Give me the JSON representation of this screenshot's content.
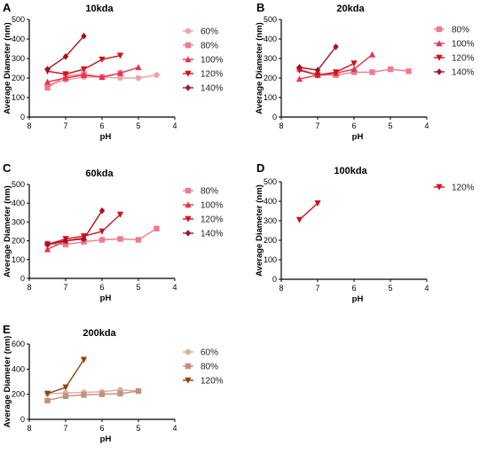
{
  "chart_data": [
    {
      "type": "line",
      "panel_letter": "A",
      "title": "10kda",
      "xlabel": "pH",
      "ylabel": "Average  Diameter  (nm)",
      "xlim": [
        8,
        4
      ],
      "ylim": [
        0,
        500
      ],
      "xticks": [
        "8",
        "7",
        "6",
        "5",
        "4"
      ],
      "yticks": [
        "0",
        "100",
        "200",
        "300",
        "400",
        "500"
      ],
      "legend_position": "right",
      "grid": false,
      "series": [
        {
          "name": "60%",
          "color": "#f3a0a8",
          "marker": "circle",
          "x": [
            7.5,
            7.0,
            6.5,
            6.0,
            5.5,
            5.0,
            4.5
          ],
          "y": [
            165,
            190,
            205,
            205,
            200,
            200,
            215
          ]
        },
        {
          "name": "80%",
          "color": "#f07a8c",
          "marker": "square",
          "x": [
            7.5,
            7.0,
            6.5,
            6.0,
            5.5
          ],
          "y": [
            150,
            210,
            220,
            205,
            225
          ]
        },
        {
          "name": "100%",
          "color": "#e8344b",
          "marker": "triangle-up",
          "x": [
            7.5,
            7.0,
            6.5,
            6.0,
            5.5,
            5.0
          ],
          "y": [
            180,
            200,
            215,
            205,
            225,
            255
          ]
        },
        {
          "name": "120%",
          "color": "#d4101e",
          "marker": "triangle-down",
          "x": [
            7.5,
            7.0,
            6.5,
            6.0,
            5.5
          ],
          "y": [
            235,
            220,
            245,
            295,
            315
          ]
        },
        {
          "name": "140%",
          "color": "#a01420",
          "marker": "diamond",
          "x": [
            7.5,
            7.0,
            6.5
          ],
          "y": [
            245,
            310,
            415
          ]
        }
      ]
    },
    {
      "type": "line",
      "panel_letter": "B",
      "title": "20kda",
      "xlabel": "pH",
      "ylabel": "Average  Diameter  (nm)",
      "xlim": [
        8,
        4
      ],
      "ylim": [
        0,
        500
      ],
      "xticks": [
        "8",
        "7",
        "6",
        "5",
        "4"
      ],
      "yticks": [
        "0",
        "100",
        "200",
        "300",
        "400",
        "500"
      ],
      "legend_position": "right",
      "grid": false,
      "series": [
        {
          "name": "80%",
          "color": "#f07a8c",
          "marker": "square",
          "x": [
            7.5,
            7.0,
            6.5,
            6.0,
            5.5,
            5.0,
            4.5
          ],
          "y": [
            245,
            215,
            215,
            230,
            230,
            245,
            235
          ]
        },
        {
          "name": "100%",
          "color": "#e8344b",
          "marker": "triangle-up",
          "x": [
            7.5,
            7.0,
            6.5,
            6.0,
            5.5
          ],
          "y": [
            195,
            215,
            225,
            245,
            320
          ]
        },
        {
          "name": "120%",
          "color": "#d4101e",
          "marker": "triangle-down",
          "x": [
            7.5,
            7.0,
            6.5,
            6.0
          ],
          "y": [
            240,
            215,
            230,
            275
          ]
        },
        {
          "name": "140%",
          "color": "#a01420",
          "marker": "diamond",
          "x": [
            7.5,
            7.0,
            6.5
          ],
          "y": [
            255,
            240,
            360
          ]
        }
      ]
    },
    {
      "type": "line",
      "panel_letter": "C",
      "title": "60kda",
      "xlabel": "pH",
      "ylabel": "Average  Diameter  (nm)",
      "xlim": [
        8,
        4
      ],
      "ylim": [
        0,
        500
      ],
      "xticks": [
        "8",
        "7",
        "6",
        "5",
        "4"
      ],
      "yticks": [
        "0",
        "100",
        "200",
        "300",
        "400",
        "500"
      ],
      "legend_position": "right",
      "grid": false,
      "series": [
        {
          "name": "80%",
          "color": "#f07a8c",
          "marker": "square",
          "x": [
            7.5,
            7.0,
            6.5,
            6.0,
            5.5,
            5.0,
            4.5
          ],
          "y": [
            185,
            180,
            195,
            205,
            210,
            205,
            265
          ]
        },
        {
          "name": "100%",
          "color": "#e8344b",
          "marker": "triangle-up",
          "x": [
            7.5,
            7.0,
            6.5
          ],
          "y": [
            155,
            200,
            215
          ]
        },
        {
          "name": "120%",
          "color": "#d4101e",
          "marker": "triangle-down",
          "x": [
            7.5,
            7.0,
            6.5,
            6.0,
            5.5
          ],
          "y": [
            180,
            210,
            225,
            250,
            340
          ]
        },
        {
          "name": "140%",
          "color": "#a01420",
          "marker": "diamond",
          "x": [
            7.5,
            7.0,
            6.5,
            6.0
          ],
          "y": [
            180,
            200,
            210,
            360
          ]
        }
      ]
    },
    {
      "type": "line",
      "panel_letter": "D",
      "title": "100kda",
      "xlabel": "pH",
      "ylabel": "Average  Diameter  (nm)",
      "xlim": [
        8,
        4
      ],
      "ylim": [
        0,
        500
      ],
      "xticks": [
        "8",
        "7",
        "6",
        "5",
        "4"
      ],
      "yticks": [
        "0",
        "100",
        "200",
        "300",
        "400",
        "500"
      ],
      "legend_position": "right",
      "grid": false,
      "series": [
        {
          "name": "120%",
          "color": "#d4101e",
          "marker": "triangle-down",
          "x": [
            7.5,
            7.0
          ],
          "y": [
            305,
            390
          ]
        }
      ]
    },
    {
      "type": "line",
      "panel_letter": "E",
      "title": "200kda",
      "xlabel": "pH",
      "ylabel": "Average  Diameter  (nm)",
      "xlim": [
        8,
        4
      ],
      "ylim": [
        0,
        600
      ],
      "xticks": [
        "8",
        "7",
        "6",
        "5",
        "4"
      ],
      "yticks": [
        "0",
        "200",
        "400",
        "600"
      ],
      "legend_position": "right",
      "grid": false,
      "series": [
        {
          "name": "60%",
          "color": "#d4b0a0",
          "marker": "circle",
          "x": [
            7.5,
            7.0,
            6.5,
            6.0,
            5.5,
            5.0
          ],
          "y": [
            205,
            210,
            215,
            220,
            235,
            225
          ]
        },
        {
          "name": "80%",
          "color": "#c49078",
          "marker": "square",
          "x": [
            7.5,
            7.0,
            6.5,
            6.0,
            5.5,
            5.0
          ],
          "y": [
            150,
            185,
            195,
            200,
            205,
            225
          ]
        },
        {
          "name": "120%",
          "color": "#8b4513",
          "marker": "triangle-down",
          "x": [
            7.5,
            7.0,
            6.5
          ],
          "y": [
            205,
            255,
            475
          ]
        }
      ]
    }
  ]
}
